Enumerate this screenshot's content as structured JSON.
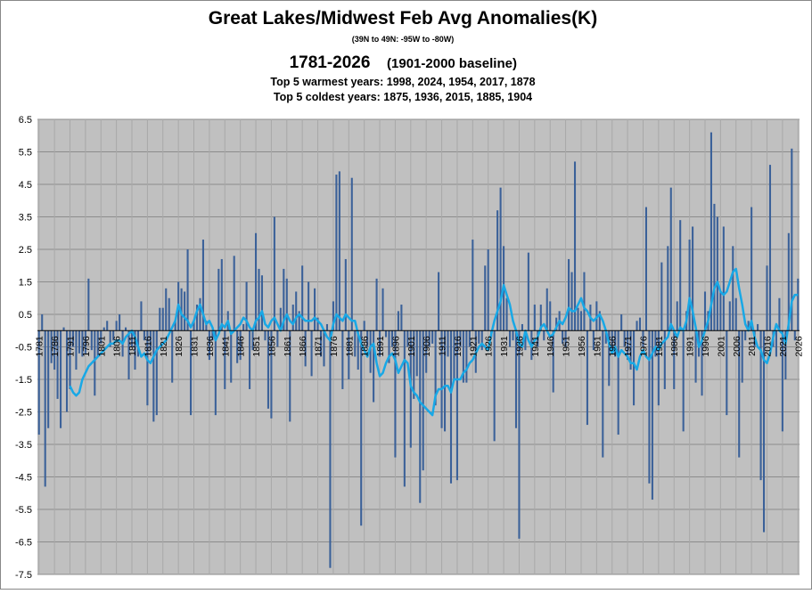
{
  "chart_data": {
    "type": "bar",
    "title": "Great Lakes/Midwest Feb Avg Anomalies(K)",
    "subtitle": "(39N to 49N: -95W  to -80W)",
    "period": "1781-2026",
    "baseline": "(1901-2000 baseline)",
    "annotations": [
      "Top 5 warmest years: 1998,  2024, 1954, 2017, 1878",
      "Top 5 coldest years: 1875,  1936, 2015, 1885, 1904"
    ],
    "x": [
      1781,
      1782,
      1783,
      1784,
      1785,
      1786,
      1787,
      1788,
      1789,
      1790,
      1791,
      1792,
      1793,
      1794,
      1795,
      1796,
      1797,
      1798,
      1799,
      1800,
      1801,
      1802,
      1803,
      1804,
      1805,
      1806,
      1807,
      1808,
      1809,
      1810,
      1811,
      1812,
      1813,
      1814,
      1815,
      1816,
      1817,
      1818,
      1819,
      1820,
      1821,
      1822,
      1823,
      1824,
      1825,
      1826,
      1827,
      1828,
      1829,
      1830,
      1831,
      1832,
      1833,
      1834,
      1835,
      1836,
      1837,
      1838,
      1839,
      1840,
      1841,
      1842,
      1843,
      1844,
      1845,
      1846,
      1847,
      1848,
      1849,
      1850,
      1851,
      1852,
      1853,
      1854,
      1855,
      1856,
      1857,
      1858,
      1859,
      1860,
      1861,
      1862,
      1863,
      1864,
      1865,
      1866,
      1867,
      1868,
      1869,
      1870,
      1871,
      1872,
      1873,
      1874,
      1875,
      1876,
      1877,
      1878,
      1879,
      1880,
      1881,
      1882,
      1883,
      1884,
      1885,
      1886,
      1887,
      1888,
      1889,
      1890,
      1891,
      1892,
      1893,
      1894,
      1895,
      1896,
      1897,
      1898,
      1899,
      1900,
      1901,
      1902,
      1903,
      1904,
      1905,
      1906,
      1907,
      1908,
      1909,
      1910,
      1911,
      1912,
      1913,
      1914,
      1915,
      1916,
      1917,
      1918,
      1919,
      1920,
      1921,
      1922,
      1923,
      1924,
      1925,
      1926,
      1927,
      1928,
      1929,
      1930,
      1931,
      1932,
      1933,
      1934,
      1935,
      1936,
      1937,
      1938,
      1939,
      1940,
      1941,
      1942,
      1943,
      1944,
      1945,
      1946,
      1947,
      1948,
      1949,
      1950,
      1951,
      1952,
      1953,
      1954,
      1955,
      1956,
      1957,
      1958,
      1959,
      1960,
      1961,
      1962,
      1963,
      1964,
      1965,
      1966,
      1967,
      1968,
      1969,
      1970,
      1971,
      1972,
      1973,
      1974,
      1975,
      1976,
      1977,
      1978,
      1979,
      1980,
      1981,
      1982,
      1983,
      1984,
      1985,
      1986,
      1987,
      1988,
      1989,
      1990,
      1991,
      1992,
      1993,
      1994,
      1995,
      1996,
      1997,
      1998,
      1999,
      2000,
      2001,
      2002,
      2003,
      2004,
      2005,
      2006,
      2007,
      2008,
      2009,
      2010,
      2011,
      2012,
      2013,
      2014,
      2015,
      2016,
      2017,
      2018,
      2019,
      2020,
      2021,
      2022,
      2023,
      2024,
      2025,
      2026
    ],
    "series": [
      {
        "kind": "bar",
        "color": "#3b6199",
        "values": [
          -3.2,
          0.5,
          -4.8,
          -3.0,
          -1.0,
          -1.2,
          -2.1,
          -3.0,
          0.1,
          -2.5,
          -1.8,
          -0.5,
          -1.2,
          -0.7,
          -0.8,
          -0.7,
          1.6,
          -0.6,
          -2.0,
          -0.8,
          -0.4,
          0.1,
          0.3,
          -0.5,
          -0.3,
          0.3,
          0.5,
          -0.8,
          0.1,
          -1.5,
          -0.5,
          -1.2,
          -0.8,
          0.9,
          -0.3,
          -2.3,
          -0.6,
          -2.8,
          -2.6,
          0.7,
          0.7,
          1.3,
          1.0,
          -1.6,
          0.3,
          1.5,
          1.3,
          1.2,
          2.5,
          -2.6,
          0.3,
          0.8,
          1.0,
          2.8,
          0.3,
          -0.9,
          -0.3,
          -2.6,
          1.9,
          2.2,
          -1.8,
          0.6,
          -1.6,
          2.3,
          -1.0,
          -0.9,
          0.2,
          1.5,
          -1.8,
          -0.6,
          3.0,
          1.9,
          1.7,
          -0.3,
          -2.4,
          -2.7,
          3.5,
          -0.5,
          0.7,
          1.9,
          1.6,
          -2.8,
          0.8,
          1.2,
          0.6,
          2.0,
          -1.1,
          1.5,
          -1.4,
          1.3,
          0.4,
          -0.8,
          -1.1,
          0.2,
          -7.3,
          0.9,
          4.8,
          4.9,
          -1.8,
          2.2,
          -1.5,
          4.7,
          -0.8,
          -1.2,
          -6.0,
          0.3,
          -0.5,
          -1.3,
          -2.2,
          1.6,
          -0.8,
          1.3,
          -0.2,
          -1.0,
          -0.5,
          -3.9,
          0.6,
          0.8,
          -4.8,
          -0.5,
          -3.6,
          -2.1,
          -1.4,
          -5.3,
          -4.3,
          -1.3,
          -0.5,
          -0.4,
          -2.3,
          1.8,
          -3.0,
          -3.1,
          -0.8,
          -4.7,
          -1.5,
          -4.6,
          -0.5,
          -1.6,
          -1.6,
          -0.5,
          2.8,
          -1.3,
          -0.4,
          -0.6,
          2.0,
          2.5,
          -0.2,
          -3.4,
          3.7,
          4.4,
          2.6,
          1.0,
          -0.5,
          -0.3,
          -3.0,
          -6.4,
          0.2,
          -0.6,
          2.4,
          -0.9,
          0.8,
          -0.5,
          0.8,
          -0.3,
          1.3,
          0.9,
          -1.9,
          0.4,
          0.6,
          -0.4,
          -0.5,
          2.2,
          1.8,
          5.2,
          0.7,
          0.6,
          1.8,
          -2.9,
          0.8,
          -0.6,
          0.9,
          0.6,
          -3.9,
          -0.4,
          -1.7,
          -0.6,
          -0.8,
          -3.2,
          0.5,
          -0.5,
          -0.9,
          -1.2,
          -2.3,
          0.3,
          0.4,
          -0.5,
          3.8,
          -4.7,
          -5.2,
          -0.8,
          -2.3,
          2.1,
          -1.8,
          2.6,
          4.4,
          -1.8,
          0.9,
          3.4,
          -3.1,
          0.6,
          2.8,
          3.2,
          -1.6,
          -0.8,
          -2.0,
          1.2,
          0.6,
          6.1,
          3.9,
          3.5,
          1.2,
          3.2,
          -2.6,
          0.9,
          2.6,
          1.0,
          -3.9,
          -1.6,
          -0.3,
          0.3,
          3.8,
          -0.5,
          0.2,
          -4.6,
          -6.2,
          2.0,
          5.1,
          -0.5,
          -0.8,
          1.0,
          -3.1,
          -1.5,
          3.0,
          5.6,
          -0.3,
          1.6
        ]
      },
      {
        "kind": "line",
        "color": "#18a8e6",
        "values": [
          null,
          null,
          null,
          null,
          null,
          null,
          null,
          null,
          null,
          null,
          -1.7,
          -1.9,
          -2.0,
          -1.9,
          -1.5,
          -1.3,
          -1.1,
          -1.0,
          -0.9,
          -0.8,
          -0.7,
          -0.6,
          -0.5,
          -0.4,
          -0.4,
          -0.3,
          -0.3,
          -0.4,
          -0.2,
          -0.1,
          0.0,
          -0.2,
          -0.5,
          -0.8,
          -0.7,
          -0.9,
          -1.0,
          -0.8,
          -0.6,
          -0.5,
          -0.4,
          -0.3,
          -0.1,
          0.1,
          0.3,
          0.8,
          0.5,
          0.4,
          0.3,
          0.1,
          0.3,
          0.6,
          0.8,
          0.5,
          0.2,
          0.3,
          0.1,
          -0.3,
          -0.1,
          0.2,
          0.1,
          0.3,
          -0.1,
          0.0,
          0.1,
          0.2,
          0.4,
          0.3,
          0.1,
          0.0,
          0.3,
          0.4,
          0.6,
          0.2,
          0.1,
          0.3,
          0.4,
          0.2,
          0.0,
          0.3,
          0.5,
          0.3,
          0.2,
          0.4,
          0.5,
          0.4,
          0.3,
          0.3,
          0.3,
          0.4,
          0.3,
          0.2,
          0.0,
          -0.2,
          -0.3,
          0.2,
          0.5,
          0.4,
          0.3,
          0.5,
          0.4,
          0.3,
          0.3,
          -0.1,
          -0.4,
          -0.6,
          -0.8,
          -0.5,
          -0.4,
          -1.0,
          -1.4,
          -1.3,
          -1.0,
          -0.8,
          -0.7,
          -0.9,
          -1.3,
          -1.1,
          -0.9,
          -1.0,
          -1.7,
          -1.9,
          -2.0,
          -2.2,
          -2.3,
          -2.4,
          -2.5,
          -2.6,
          -2.0,
          -1.8,
          -1.8,
          -1.7,
          -1.7,
          -1.9,
          -1.5,
          -1.5,
          -1.5,
          -1.3,
          -1.2,
          -1.0,
          -0.9,
          -0.7,
          -0.5,
          -0.4,
          -0.5,
          -0.6,
          -0.1,
          0.3,
          0.6,
          0.9,
          1.4,
          1.1,
          0.8,
          0.3,
          0.0,
          -0.4,
          -0.5,
          0.0,
          -0.3,
          -0.5,
          -0.3,
          -0.2,
          0.1,
          0.2,
          0.0,
          -0.2,
          -0.1,
          0.1,
          0.3,
          0.2,
          0.4,
          0.7,
          0.6,
          0.6,
          0.8,
          1.0,
          0.7,
          0.6,
          0.4,
          0.3,
          0.4,
          0.5,
          0.3,
          0.0,
          -0.4,
          -0.7,
          -0.5,
          -0.8,
          -0.6,
          -0.7,
          -0.8,
          -1.0,
          -1.0,
          -1.2,
          -0.8,
          -0.6,
          -0.8,
          -0.9,
          -0.7,
          -0.5,
          -0.6,
          -0.4,
          -0.3,
          -0.2,
          0.2,
          0.0,
          -0.2,
          0.1,
          0.0,
          0.3,
          1.0,
          0.6,
          0.1,
          -0.5,
          -0.3,
          0.0,
          0.3,
          0.8,
          1.3,
          1.5,
          1.2,
          1.1,
          1.2,
          1.5,
          1.8,
          1.9,
          1.3,
          0.8,
          0.2,
          0.0,
          0.3,
          -0.2,
          -0.5,
          -0.6,
          -0.9,
          -1.0,
          -0.7,
          -0.2,
          0.2,
          0.0,
          -0.1,
          -0.4,
          0.2,
          0.9,
          1.1,
          1.1
        ]
      }
    ],
    "ylim": [
      -7.5,
      6.5
    ],
    "yticks": [
      6.5,
      5.5,
      4.5,
      3.5,
      2.5,
      1.5,
      0.5,
      -0.5,
      -1.5,
      -2.5,
      -3.5,
      -4.5,
      -5.5,
      -6.5,
      -7.5
    ],
    "xticks": [
      1781,
      1786,
      1791,
      1796,
      1801,
      1806,
      1811,
      1816,
      1821,
      1826,
      1831,
      1836,
      1841,
      1846,
      1851,
      1856,
      1861,
      1866,
      1871,
      1876,
      1881,
      1886,
      1891,
      1896,
      1901,
      1906,
      1911,
      1916,
      1921,
      1926,
      1931,
      1936,
      1941,
      1946,
      1951,
      1956,
      1961,
      1966,
      1971,
      1976,
      1981,
      1986,
      1991,
      1996,
      2001,
      2006,
      2011,
      2016,
      2021,
      2026
    ],
    "grid": true
  }
}
